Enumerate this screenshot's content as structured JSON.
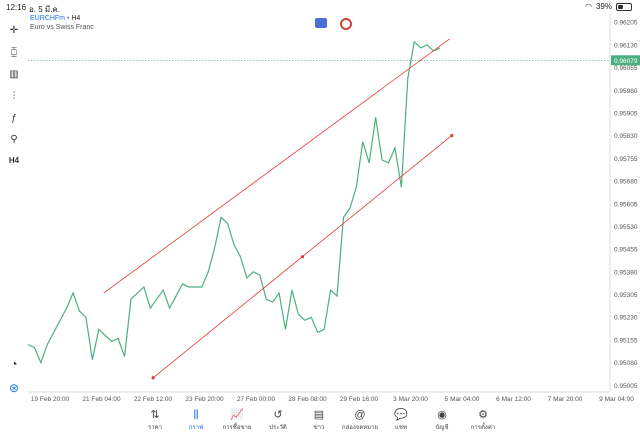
{
  "status_bar": {
    "time": "12:16",
    "date": "อ. 5 มี.ค.",
    "battery": "39%",
    "battery_level": 0.39
  },
  "symbol": {
    "name": "EURCHFm",
    "separator": "•",
    "timeframe": "H4",
    "description": "Euro vs Swiss Franc"
  },
  "left_toolbar": [
    {
      "name": "crosshair-icon",
      "glyph": "✛"
    },
    {
      "name": "chart-type-icon",
      "glyph": "⧮"
    },
    {
      "name": "indicators-icon",
      "glyph": "▥"
    },
    {
      "name": "settings-sliders-icon",
      "glyph": "⫶"
    },
    {
      "name": "function-icon",
      "glyph": "ƒ"
    },
    {
      "name": "objects-icon",
      "glyph": "⚲"
    },
    {
      "name": "timeframe-label",
      "glyph": "H4"
    }
  ],
  "left_bottom_tools": [
    {
      "name": "speedometer-icon",
      "glyph": "◔"
    },
    {
      "name": "app-logo-icon",
      "glyph": "⊛"
    }
  ],
  "chart_data": {
    "type": "line",
    "title": "",
    "xlabel": "",
    "ylabel": "",
    "current_price": "0.96079",
    "y_ticks": [
      "0.96205",
      "0.96130",
      "0.96055",
      "0.95980",
      "0.95905",
      "0.95830",
      "0.95755",
      "0.95680",
      "0.95605",
      "0.95530",
      "0.95455",
      "0.95380",
      "0.95305",
      "0.95230",
      "0.95155",
      "0.95080",
      "0.95005"
    ],
    "x_ticks": [
      "19 Feb 20:00",
      "21 Feb 04:00",
      "22 Feb 12:00",
      "23 Feb 20:00",
      "27 Feb 00:00",
      "28 Feb 08:00",
      "29 Feb 16:00",
      "3 Mar 20:00",
      "5 Mar 04:00",
      "6 Mar 12:00",
      "7 Mar 20:00",
      "9 Mar 04:00"
    ],
    "ylim": [
      0.94983,
      0.96232
    ],
    "line_color": "#4caf82",
    "trendline_color": "#e53935",
    "values": [
      0.9514,
      0.9513,
      0.9508,
      0.9514,
      0.9518,
      0.9522,
      0.9526,
      0.9531,
      0.9525,
      0.9523,
      0.9509,
      0.9519,
      0.9517,
      0.9515,
      0.9516,
      0.951,
      0.9529,
      0.9531,
      0.9533,
      0.9526,
      0.9529,
      0.9532,
      0.9526,
      0.953,
      0.9534,
      0.9533,
      0.9533,
      0.9533,
      0.9538,
      0.9546,
      0.9556,
      0.9554,
      0.9547,
      0.9543,
      0.9536,
      0.9538,
      0.9537,
      0.9529,
      0.9528,
      0.9531,
      0.9519,
      0.9532,
      0.9524,
      0.9522,
      0.9523,
      0.9518,
      0.9519,
      0.9532,
      0.953,
      0.9556,
      0.9559,
      0.9566,
      0.9581,
      0.9574,
      0.9589,
      0.9575,
      0.9574,
      0.9579,
      0.9566,
      0.9602,
      0.9614,
      0.9612,
      0.9613,
      0.9611,
      0.9612
    ],
    "trendlines": [
      {
        "name": "upper-channel-line",
        "points": [
          [
            0.13,
            0.9531
          ],
          [
            0.57,
            0.9615
          ]
        ]
      },
      {
        "name": "lower-channel-line",
        "points": [
          [
            0.215,
            0.9503
          ],
          [
            0.57,
            0.9583
          ]
        ],
        "mid_marker": 0.44
      }
    ]
  },
  "tab_bar": [
    {
      "name": "tab-quotes",
      "label": "ราคา",
      "glyph": "⇅",
      "active": false
    },
    {
      "name": "tab-chart",
      "label": "กราฟ",
      "glyph": "⫼",
      "active": true
    },
    {
      "name": "tab-trade",
      "label": "การซื้อขาย",
      "glyph": "📈",
      "active": false
    },
    {
      "name": "tab-history",
      "label": "ประวัติ",
      "glyph": "↺",
      "active": false
    },
    {
      "name": "tab-news",
      "label": "ข่าว",
      "glyph": "▤",
      "active": false
    },
    {
      "name": "tab-mailbox",
      "label": "กล่องจดหมาย",
      "glyph": "@",
      "active": false
    },
    {
      "name": "tab-chat",
      "label": "แชท",
      "glyph": "💬",
      "active": false
    },
    {
      "name": "tab-accounts",
      "label": "บัญชี",
      "glyph": "◉",
      "active": false
    },
    {
      "name": "tab-settings",
      "label": "การตั้งค่า",
      "glyph": "⚙",
      "active": false
    }
  ]
}
